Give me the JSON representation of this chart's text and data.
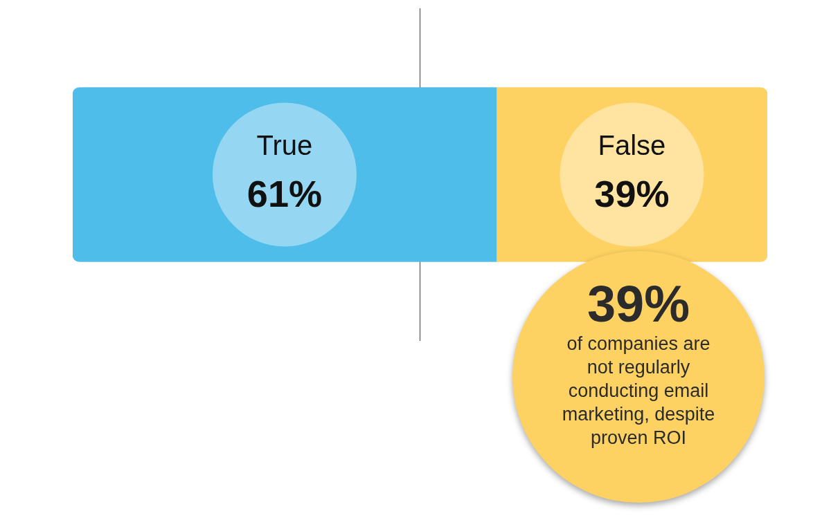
{
  "chart_data": {
    "type": "bar",
    "orientation": "horizontal",
    "stacked": true,
    "categories": [
      null
    ],
    "series": [
      {
        "name": "True",
        "color": "#4fbdea",
        "values": [
          61
        ],
        "value_labels": [
          "61%"
        ]
      },
      {
        "name": "False",
        "color": "#fdd262",
        "values": [
          39
        ],
        "value_labels": [
          "39%"
        ]
      }
    ],
    "xlim": [
      0,
      100
    ],
    "tick_labels": false,
    "legend": false,
    "ref_lines": [
      {
        "axis": "x",
        "value": 50,
        "color": "#555555"
      }
    ],
    "annotations": [
      "39%",
      "of companies are not regularly conducting email marketing, despite proven ROI"
    ]
  }
}
